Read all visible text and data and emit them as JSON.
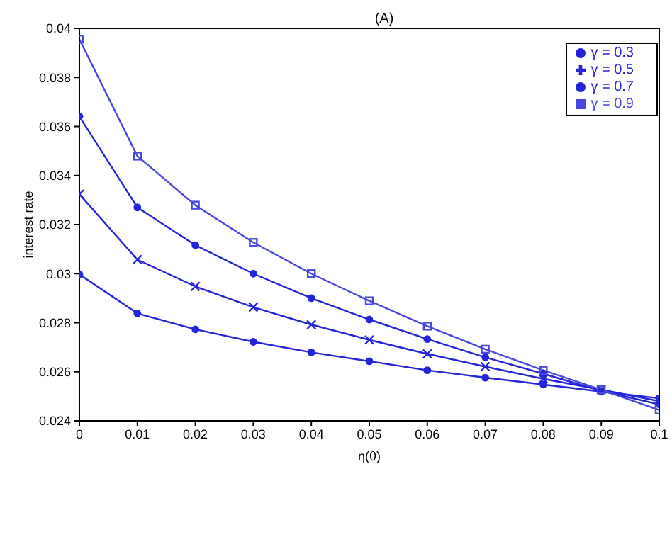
{
  "chart_data": {
    "type": "line",
    "title": "(A)",
    "xlabel": "η(θ)",
    "ylabel": "interest rate",
    "x": [
      0,
      0.01,
      0.02,
      0.03,
      0.04,
      0.05,
      0.06,
      0.07,
      0.08,
      0.09,
      0.1
    ],
    "series": [
      {
        "name": "γ = 0.3",
        "color": "#2424d8",
        "marker": "circle",
        "values": [
          0.02997,
          0.02838,
          0.02773,
          0.02722,
          0.02679,
          0.02643,
          0.02606,
          0.02576,
          0.02548,
          0.02519,
          0.02492
        ]
      },
      {
        "name": "γ = 0.5",
        "color": "#2424d8",
        "marker": "cross",
        "values": [
          0.03324,
          0.03057,
          0.02948,
          0.02863,
          0.02792,
          0.0273,
          0.02673,
          0.02621,
          0.02571,
          0.02527,
          0.0248
        ]
      },
      {
        "name": "γ = 0.7",
        "color": "#2424d8",
        "marker": "circle",
        "values": [
          0.03641,
          0.0327,
          0.03116,
          0.03,
          0.029,
          0.02813,
          0.02733,
          0.02659,
          0.02592,
          0.02522,
          0.02467
        ]
      },
      {
        "name": "γ = 0.9",
        "color": "#4848e0",
        "marker": "square",
        "values": [
          0.03956,
          0.03479,
          0.03279,
          0.03127,
          0.03,
          0.02889,
          0.02786,
          0.02692,
          0.02606,
          0.02527,
          0.02444
        ]
      }
    ],
    "xlim": [
      0,
      0.1
    ],
    "xticks": [
      0,
      0.01,
      0.02,
      0.03,
      0.04,
      0.05,
      0.06,
      0.07,
      0.08,
      0.09,
      0.1
    ],
    "ylim": [
      0.024,
      0.04
    ],
    "yticks": [
      0.024,
      0.026,
      0.028,
      0.03,
      0.032,
      0.034,
      0.036,
      0.038,
      0.04
    ],
    "grid": false,
    "legend": "top right",
    "line_style": "solid"
  }
}
